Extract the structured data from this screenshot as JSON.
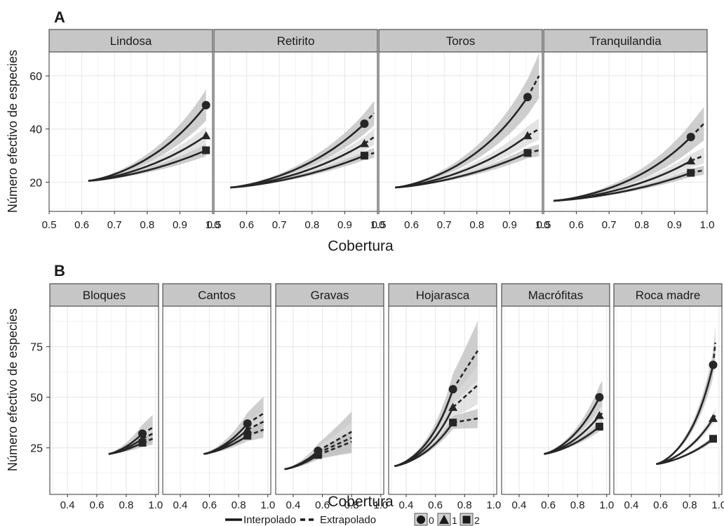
{
  "colors": {
    "panel_bg": "#ffffff",
    "grid": "#e6e6e6",
    "strip_bg": "#c6c6c6",
    "border": "#333333",
    "ribbon_dark": "#bdbdbd",
    "ribbon_light": "#d9d9d9",
    "line": "#262626"
  },
  "legend": {
    "interpolated": "Interpolado",
    "extrapolated": "Extrapolado",
    "order_0": "0",
    "order_1": "1",
    "order_2": "2"
  },
  "chart_data": [
    {
      "type": "line",
      "panel_letter": "A",
      "xlabel": "Cobertura",
      "ylabel": "Número efectivo de especies",
      "xlim": [
        0.5,
        1.0
      ],
      "ylim": [
        9,
        69
      ],
      "xticks": [
        0.5,
        0.6,
        0.7,
        0.8,
        0.9,
        1.0
      ],
      "xtick_labels": [
        "0.5",
        "0.6",
        "0.7",
        "0.8",
        "0.9",
        "1.0"
      ],
      "yticks": [
        20,
        40,
        60
      ],
      "grid": true,
      "facets": [
        {
          "name": "Lindosa",
          "x_start": 0.62,
          "y_start": 20.5,
          "x_obs": 0.98,
          "y_obs": [
            49,
            37.5,
            32
          ],
          "x_end": 0.98,
          "y_end": [
            49,
            37.5,
            32
          ],
          "band": [
            0.12,
            0.09,
            0.07
          ]
        },
        {
          "name": "Retirito",
          "x_start": 0.55,
          "y_start": 18,
          "x_obs": 0.96,
          "y_obs": [
            42,
            34.5,
            30
          ],
          "x_end": 0.99,
          "y_end": [
            46,
            37,
            31
          ],
          "band": [
            0.1,
            0.08,
            0.06
          ]
        },
        {
          "name": "Toros",
          "x_start": 0.55,
          "y_start": 18,
          "x_obs": 0.955,
          "y_obs": [
            52,
            37.5,
            31
          ],
          "x_end": 0.99,
          "y_end": [
            60,
            40,
            32
          ],
          "band": [
            0.14,
            0.1,
            0.07
          ]
        },
        {
          "name": "Tranquilandia",
          "x_start": 0.53,
          "y_start": 13,
          "x_obs": 0.95,
          "y_obs": [
            37,
            28,
            23.5
          ],
          "x_end": 0.99,
          "y_end": [
            42,
            30,
            24.5
          ],
          "band": [
            0.15,
            0.1,
            0.07
          ]
        }
      ]
    },
    {
      "type": "line",
      "panel_letter": "B",
      "xlabel": "Cobertura",
      "ylabel": "Número efectivo de especies",
      "xlim": [
        0.28,
        1.02
      ],
      "ylim": [
        2,
        95
      ],
      "xticks": [
        0.4,
        0.6,
        0.8,
        1.0
      ],
      "xtick_labels": [
        "0.4",
        "0.6",
        "0.8",
        "1.0"
      ],
      "yticks": [
        25,
        50,
        75
      ],
      "grid": true,
      "facets": [
        {
          "name": "Bloques",
          "x_start": 0.68,
          "y_start": 22,
          "x_obs": 0.91,
          "y_obs": [
            32,
            29.5,
            27.5
          ],
          "x_end": 0.98,
          "y_end": [
            35,
            32,
            29.5
          ],
          "band": [
            0.18,
            0.14,
            0.1
          ]
        },
        {
          "name": "Cantos",
          "x_start": 0.56,
          "y_start": 22,
          "x_obs": 0.86,
          "y_obs": [
            37,
            34,
            31
          ],
          "x_end": 0.97,
          "y_end": [
            42,
            38,
            34
          ],
          "band": [
            0.2,
            0.15,
            0.12
          ]
        },
        {
          "name": "Gravas",
          "x_start": 0.34,
          "y_start": 14.5,
          "x_obs": 0.57,
          "y_obs": [
            23.5,
            22.5,
            21.5
          ],
          "x_end": 0.8,
          "y_end": [
            33,
            30,
            28
          ],
          "band": [
            0.3,
            0.25,
            0.2
          ]
        },
        {
          "name": "Hojarasca",
          "x_start": 0.32,
          "y_start": 16,
          "x_obs": 0.72,
          "y_obs": [
            54,
            45,
            37.5
          ],
          "x_end": 0.89,
          "y_end": [
            73,
            56,
            39.5
          ],
          "band": [
            0.2,
            0.17,
            0.12
          ]
        },
        {
          "name": "Macrófitas",
          "x_start": 0.57,
          "y_start": 22,
          "x_obs": 0.95,
          "y_obs": [
            50,
            41,
            35.5
          ],
          "x_end": 0.97,
          "y_end": [
            52,
            42,
            36
          ],
          "band": [
            0.12,
            0.09,
            0.07
          ]
        },
        {
          "name": "Roca madre",
          "x_start": 0.57,
          "y_start": 17,
          "x_obs": 0.96,
          "y_obs": [
            66,
            39.5,
            29.5
          ],
          "x_end": 0.975,
          "y_end": [
            77,
            41,
            30
          ],
          "band": [
            0.1,
            0.07,
            0.05
          ]
        }
      ]
    }
  ]
}
